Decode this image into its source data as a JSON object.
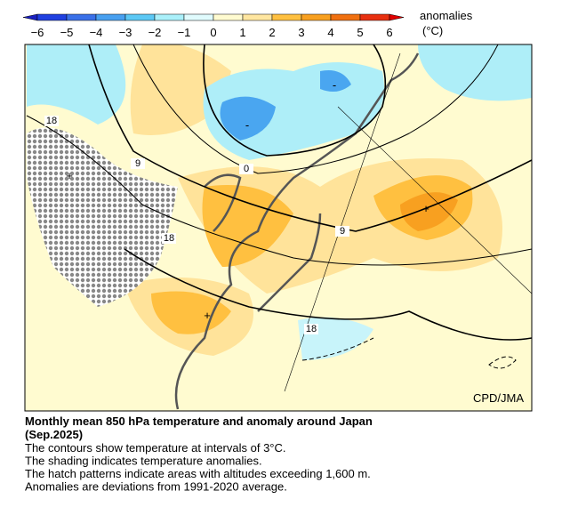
{
  "colorbar": {
    "ticks": [
      "−6",
      "−5",
      "−4",
      "−3",
      "−2",
      "−1",
      "0",
      "1",
      "2",
      "3",
      "4",
      "5",
      "6"
    ],
    "label": "anomalies",
    "unit": "(°C)"
  },
  "map": {
    "contour_labels": [
      "18",
      "9",
      "0",
      "9",
      "18",
      "18"
    ],
    "anomaly_marks": [
      "-",
      "-",
      "+",
      "+",
      "+"
    ],
    "credit": "CPD/JMA"
  },
  "caption": {
    "title": "Monthly mean 850 hPa temperature and anomaly around Japan",
    "period": "(Sep.2025)",
    "lines": [
      "The contours show temperature at intervals of 3°C.",
      "The shading indicates temperature anomalies.",
      "The hatch patterns indicate areas with altitudes exceeding 1,600 m.",
      "Anomalies are deviations from 1991-2020 average."
    ]
  }
}
